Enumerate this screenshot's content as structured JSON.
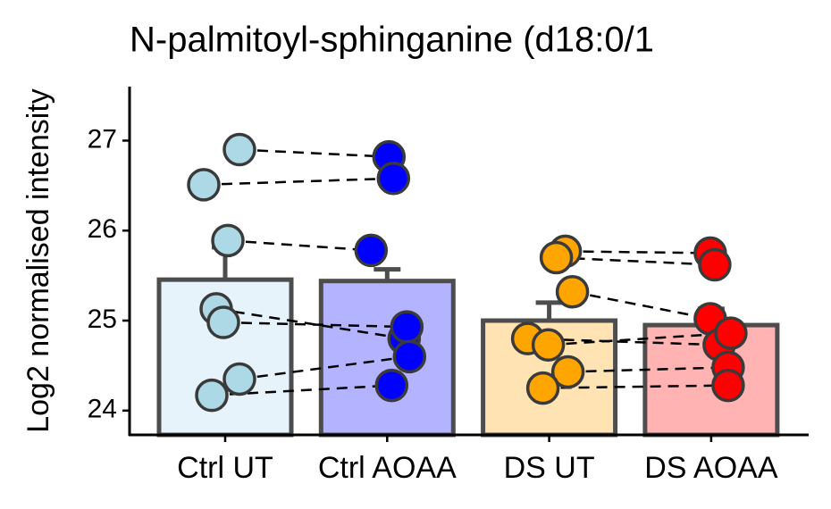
{
  "chart_data": {
    "type": "bar",
    "title": "N-palmitoyl-sphinganine (d18:0/1",
    "y_label": "Log2 normalised intensity",
    "categories": [
      "Ctrl UT",
      "Ctrl AOAA",
      "DS UT",
      "DS AOAA"
    ],
    "values": [
      25.455,
      25.44,
      25.0,
      24.95
    ],
    "errors": [
      0.36,
      0.13,
      0.2,
      0.18
    ],
    "bar_colors": [
      "#e6f3fa",
      "#b3b3ff",
      "#ffe3b3",
      "#ffb3b3"
    ],
    "point_colors": [
      "#add8e6",
      "#0000ff",
      "#ffa500",
      "#ff0000"
    ],
    "points": [
      [
        26.9,
        26.51,
        25.89,
        25.13,
        24.98,
        24.35,
        24.17
      ],
      [
        26.82,
        26.58,
        25.78,
        24.8,
        24.93,
        24.6,
        24.28
      ],
      [
        25.77,
        25.7,
        25.32,
        24.8,
        24.73,
        24.43,
        24.25
      ],
      [
        25.75,
        25.62,
        25.02,
        24.73,
        24.86,
        24.48,
        24.28
      ]
    ],
    "pairs": [
      [
        0,
        1
      ],
      [
        2,
        3
      ]
    ],
    "ylim": [
      23.73,
      27.6
    ],
    "yticks": [
      24,
      25,
      26,
      27
    ]
  }
}
